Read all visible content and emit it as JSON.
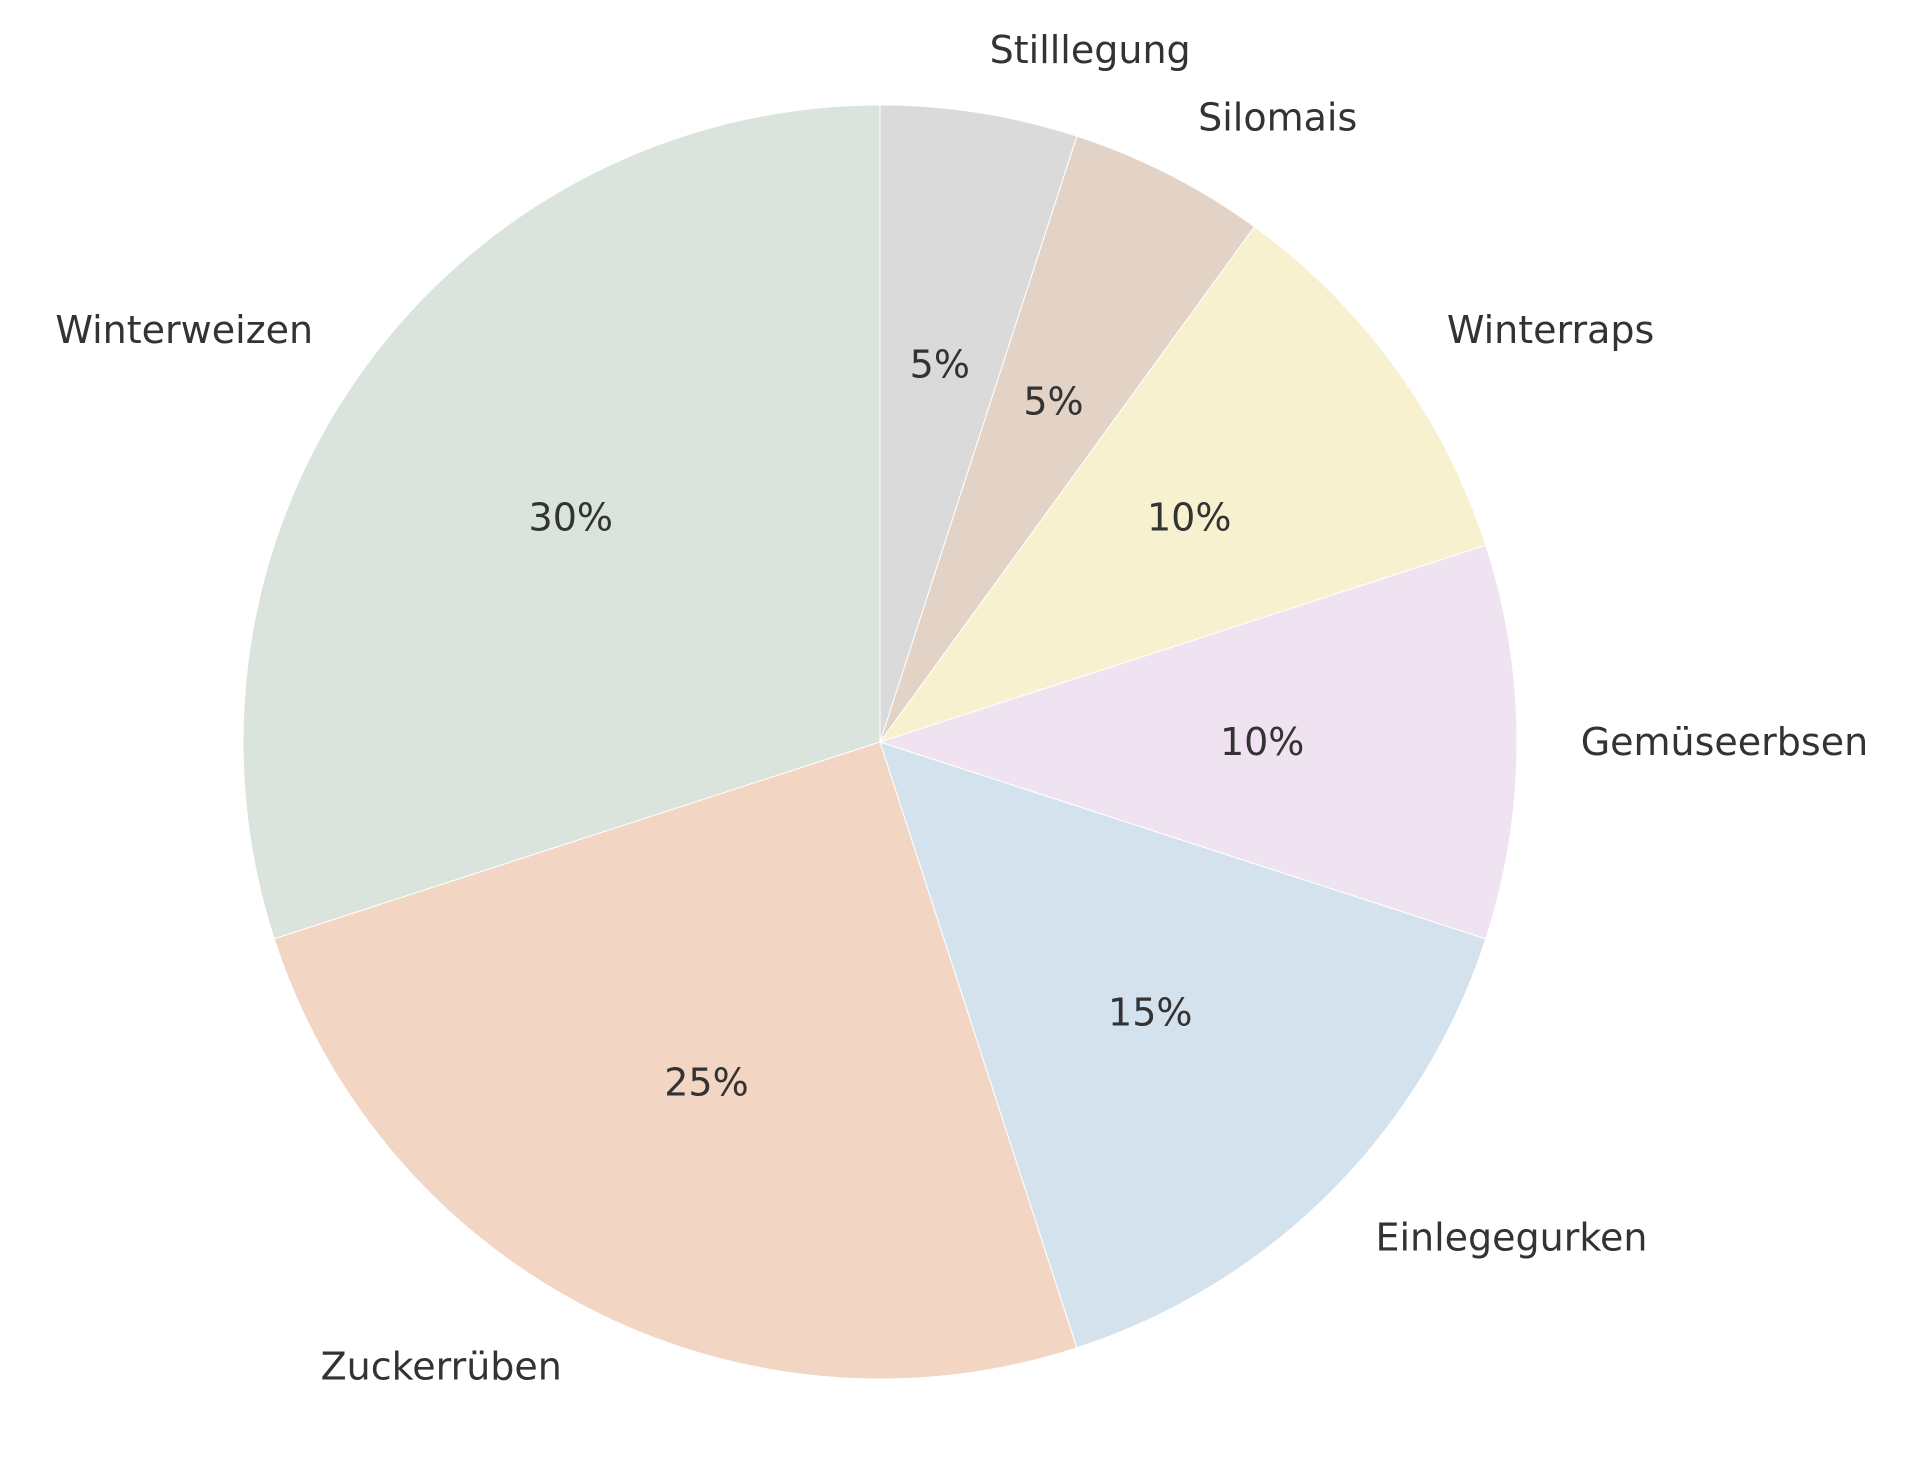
{
  "chart_data": {
    "type": "pie",
    "start_angle_deg": 90,
    "direction": "counterclockwise",
    "edge_color": "#ffffff",
    "slices": [
      {
        "label": "Winterweizen",
        "value": 30,
        "pct_label": "30%",
        "color": "#dae4dd"
      },
      {
        "label": "Zuckerrüben",
        "value": 25,
        "pct_label": "25%",
        "color": "#f2d5c2"
      },
      {
        "label": "Einlegegurken",
        "value": 15,
        "pct_label": "15%",
        "color": "#d4e2ee"
      },
      {
        "label": "Gemüseerbsen",
        "value": 10,
        "pct_label": "10%",
        "color": "#f0e3f1"
      },
      {
        "label": "Winterraps",
        "value": 10,
        "pct_label": "10%",
        "color": "#f7f1d0"
      },
      {
        "label": "Silomais",
        "value": 5,
        "pct_label": "5%",
        "color": "#e3d3c7"
      },
      {
        "label": "Stilllegung",
        "value": 5,
        "pct_label": "5%",
        "color": "#dadada"
      }
    ]
  }
}
